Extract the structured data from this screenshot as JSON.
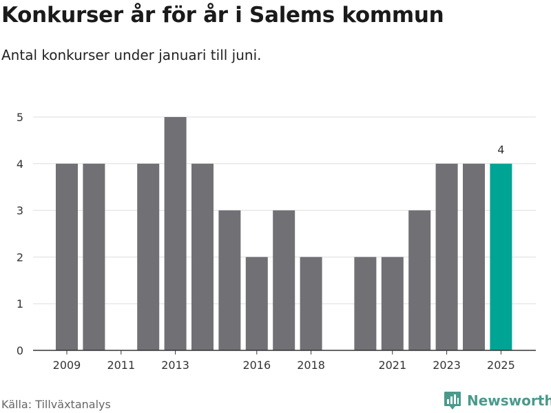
{
  "header": {
    "title": "Konkurser år för år i Salems kommun",
    "subtitle": "Antal konkurser under januari till juni."
  },
  "footer": {
    "source": "Källa: Tillväxtanalys",
    "brand": "Newsworthy"
  },
  "colors": {
    "bar": "#707075",
    "highlight": "#00a494",
    "grid": "#dddddd",
    "axis": "#333333",
    "brand": "#4a9a8c"
  },
  "chart_data": {
    "type": "bar",
    "categories": [
      "2009",
      "2010",
      "2011",
      "2012",
      "2013",
      "2014",
      "2015",
      "2016",
      "2017",
      "2018",
      "2019",
      "2020",
      "2021",
      "2022",
      "2023",
      "2024",
      "2025"
    ],
    "values": [
      4,
      4,
      0,
      4,
      5,
      4,
      3,
      2,
      3,
      2,
      0,
      2,
      2,
      3,
      4,
      4,
      4
    ],
    "x_tick_labels": [
      "2009",
      "2011",
      "2013",
      "2016",
      "2018",
      "2021",
      "2023",
      "2025"
    ],
    "y_ticks": [
      0,
      1,
      2,
      3,
      4,
      5
    ],
    "ylim": [
      0,
      5
    ],
    "highlight_category": "2025",
    "data_labels": [
      {
        "category": "2025",
        "text": "4"
      }
    ],
    "grid": true,
    "legend": "none"
  }
}
